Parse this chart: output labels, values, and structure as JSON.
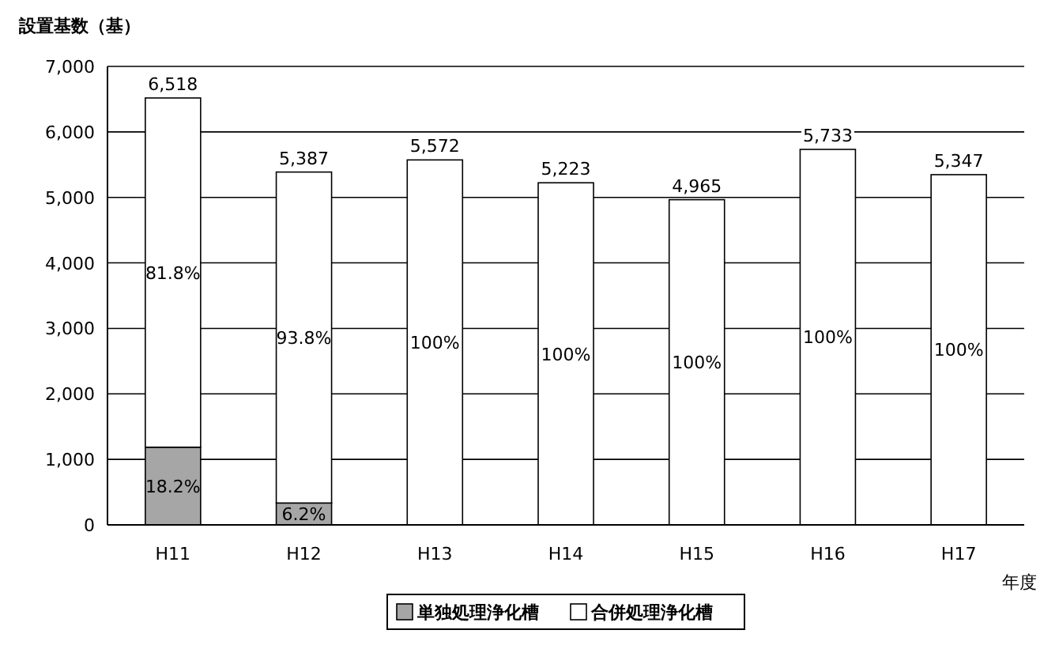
{
  "chart_data": {
    "type": "bar",
    "stacked": true,
    "ylabel": "設置基数（基）",
    "xlabel": "年度",
    "categories": [
      "H11",
      "H12",
      "H13",
      "H14",
      "H15",
      "H16",
      "H17"
    ],
    "series": [
      {
        "name": "単独処理浄化槽",
        "color": "#a6a6a6",
        "values": [
          1186,
          334,
          0,
          0,
          0,
          0,
          0
        ]
      },
      {
        "name": "合併処理浄化槽",
        "color": "#ffffff",
        "values": [
          5332,
          5053,
          5572,
          5223,
          4965,
          5733,
          5347
        ]
      }
    ],
    "totals": [
      "6,518",
      "5,387",
      "5,572",
      "5,223",
      "4,965",
      "5,733",
      "5,347"
    ],
    "annotations": [
      "18.2%",
      "6.2%",
      "81.8%",
      "93.8%",
      "100%",
      "100%",
      "100%",
      "100%",
      "100%"
    ],
    "ylim": [
      0,
      7000
    ],
    "yticks": [
      0,
      {
        "value": 1000,
        "label": "1,000"
      },
      {
        "value": 2000,
        "label": "2,000"
      },
      {
        "value": 3000,
        "label": "3,000"
      },
      {
        "value": 4000,
        "label": "4,000"
      },
      {
        "value": 5000,
        "label": "5,000"
      },
      {
        "value": 6000,
        "label": "6,000"
      },
      {
        "value": 7000,
        "label": "7,000"
      }
    ],
    "grid": "y",
    "legend": "bottom"
  }
}
